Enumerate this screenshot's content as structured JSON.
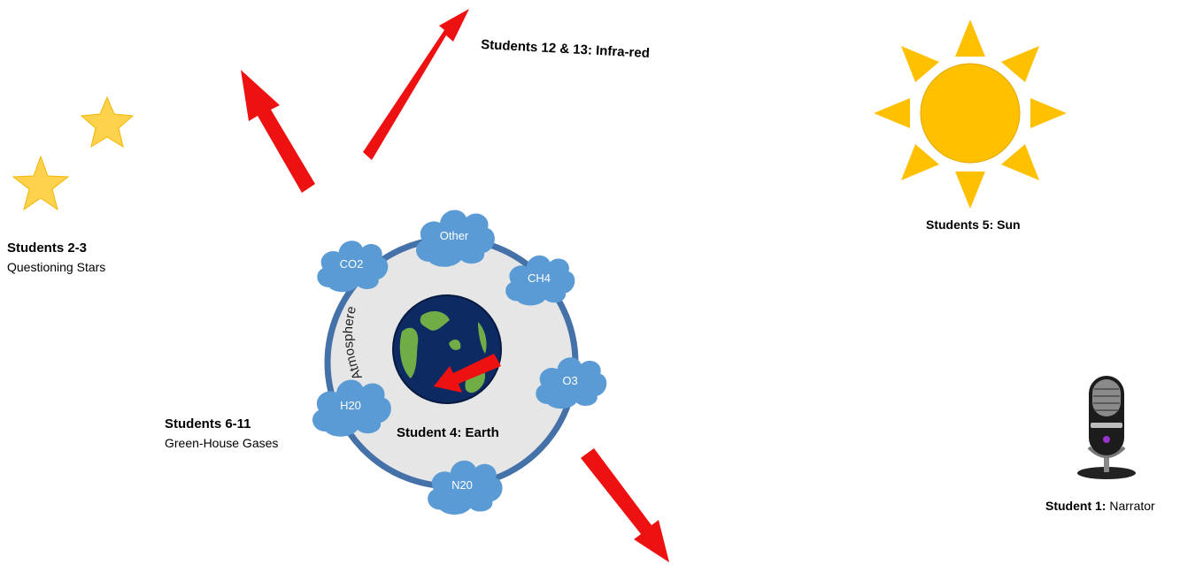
{
  "colors": {
    "arrow_red": "#ee1111",
    "star_yellow": "#ffd24d",
    "sun_yellow": "#ffc000",
    "cloud_blue": "#5b9bd5",
    "ring_blue": "#4472a8",
    "ring_fill": "#e6e6e6",
    "ocean_navy": "#0d2a63",
    "land_green": "#70ad47"
  },
  "icons": {
    "stars": "star-icon",
    "sun": "sun-icon",
    "narrator": "microphone-icon",
    "earth": "earth-globe-icon"
  },
  "labels": {
    "questioning_title": "Students 2-3",
    "questioning_sub": "Questioning Stars",
    "infrared": "Students 12 & 13:  Infra-red",
    "sun": "Students 5:  Sun",
    "gases_title": "Students 6-11",
    "gases_sub": "Green-House Gases",
    "earth": "Student 4: Earth",
    "atmosphere": "Atmosphere",
    "narrator_bold": "Student 1:",
    "narrator_role": " Narrator"
  },
  "gases": {
    "other": "Other",
    "co2": "CO2",
    "ch4": "CH4",
    "o3": "O3",
    "h2o": "H20",
    "n2o": "N20"
  }
}
